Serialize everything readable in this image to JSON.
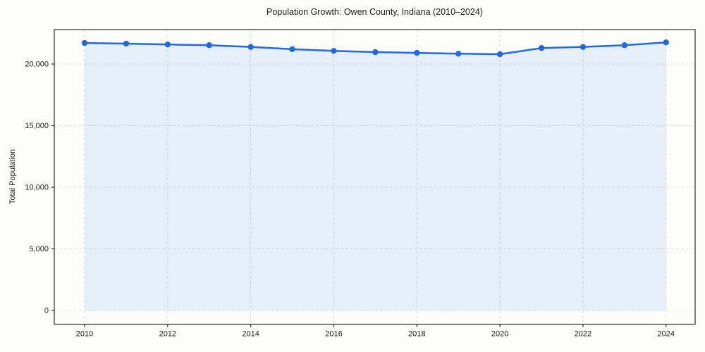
{
  "chart_data": {
    "type": "line",
    "title": "Population Growth: Owen County, Indiana (2010–2024)",
    "xlabel": "",
    "ylabel": "Total Population",
    "series": [
      {
        "name": "Total Population",
        "x": [
          2010,
          2011,
          2012,
          2013,
          2014,
          2015,
          2016,
          2017,
          2018,
          2019,
          2020,
          2021,
          2022,
          2023,
          2024
        ],
        "values": [
          21710,
          21660,
          21590,
          21530,
          21390,
          21210,
          21070,
          20970,
          20910,
          20840,
          20800,
          21300,
          21390,
          21530,
          21760
        ]
      }
    ],
    "xticks": [
      2010,
      2012,
      2014,
      2016,
      2018,
      2020,
      2022,
      2024
    ],
    "yticks": [
      0,
      5000,
      10000,
      15000,
      20000
    ],
    "ytick_labels": [
      "0",
      "5,000",
      "10,000",
      "15,000",
      "20,000"
    ],
    "xlim": [
      2009.27,
      2024.7
    ],
    "ylim": [
      -1115,
      22800
    ],
    "grid": true,
    "grid_style": "dashed",
    "legend": "none",
    "marker": "circle",
    "area_fill": true,
    "area_baseline": 0,
    "colors": {
      "line": "#2169e2",
      "marker": "#2169e2",
      "fill": "rgba(33, 105, 226, 0.10)",
      "grid": "#dedede",
      "spine": "#2b2b2b",
      "tick": "#2b2b2b",
      "text": "#1a1a1a",
      "background": "#fdfdfb"
    }
  }
}
